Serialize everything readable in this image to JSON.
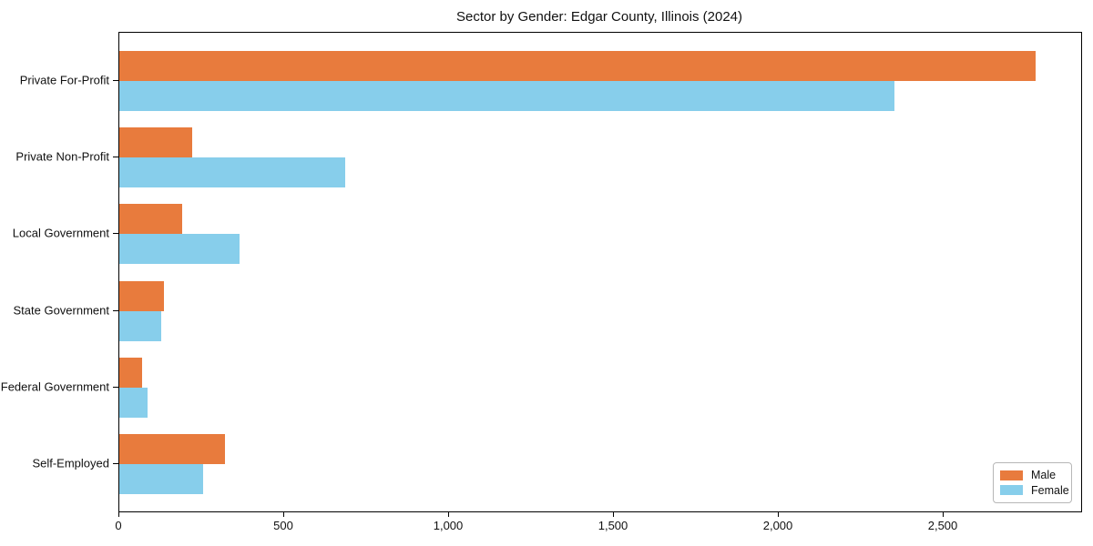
{
  "title": "Sector by Gender: Edgar County, Illinois (2024)",
  "colors": {
    "male": "#e87b3d",
    "female": "#87ceeb",
    "frame": "#000000",
    "background": "#ffffff"
  },
  "legend": {
    "position": "lower right",
    "items": [
      {
        "label": "Male",
        "color": "#e87b3d"
      },
      {
        "label": "Female",
        "color": "#87ceeb"
      }
    ]
  },
  "chart_data": {
    "type": "bar",
    "orientation": "horizontal",
    "title": "Sector by Gender: Edgar County, Illinois (2024)",
    "categories": [
      "Private For-Profit",
      "Private Non-Profit",
      "Local Government",
      "State Government",
      "Federal Government",
      "Self-Employed"
    ],
    "series": [
      {
        "name": "Male",
        "color": "#e87b3d",
        "values": [
          2780,
          220,
          190,
          135,
          70,
          320
        ]
      },
      {
        "name": "Female",
        "color": "#87ceeb",
        "values": [
          2350,
          685,
          365,
          127,
          86,
          255
        ]
      }
    ],
    "xlabel": "",
    "ylabel": "",
    "xlim": [
      0,
      2917
    ],
    "xticks": [
      0,
      500,
      1000,
      1500,
      2000,
      2500
    ],
    "xtick_labels": [
      "0",
      "500",
      "1,000",
      "1,500",
      "2,000",
      "2,500"
    ],
    "grid": false,
    "legend_position": "lower right"
  }
}
